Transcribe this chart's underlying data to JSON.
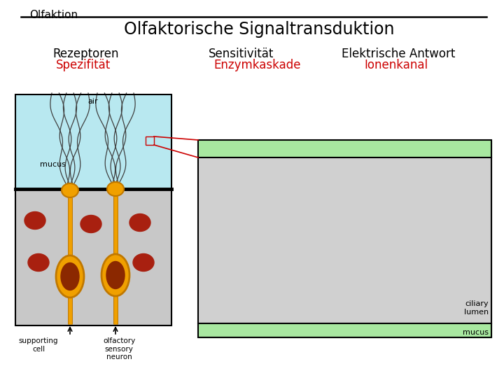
{
  "title_small": "Olfaktion",
  "title_main": "Olfaktorische Signaltransduktion",
  "col1_header": "Rezeptoren",
  "col1_sub": "Spezifität",
  "col2_header": "Sensitivität",
  "col2_sub": "Enzymkaskade",
  "col3_header": "Elektrische Antwort",
  "col3_sub": "Ionenkanal",
  "label_air": "air",
  "label_mucus_small": "mucus",
  "label_supporting": "supporting\ncell",
  "label_olfactory": "olfactory\nsensory\nneuron",
  "label_ciliary": "ciliary\nlumen",
  "label_mucus_large": "mucus",
  "bg_color": "#ffffff",
  "air_color": "#b8e8f0",
  "tissue_color": "#c8c8c8",
  "green_band_color": "#a8e8a0",
  "large_box_color": "#d0d0d0",
  "neuron_color": "#f0a000",
  "neuron_dark": "#c07800",
  "nucleus_color": "#8b2800",
  "red_dot_color": "#a82010",
  "arrow_color": "#cc0000",
  "header_color": "#000000",
  "sub_color": "#cc0000"
}
